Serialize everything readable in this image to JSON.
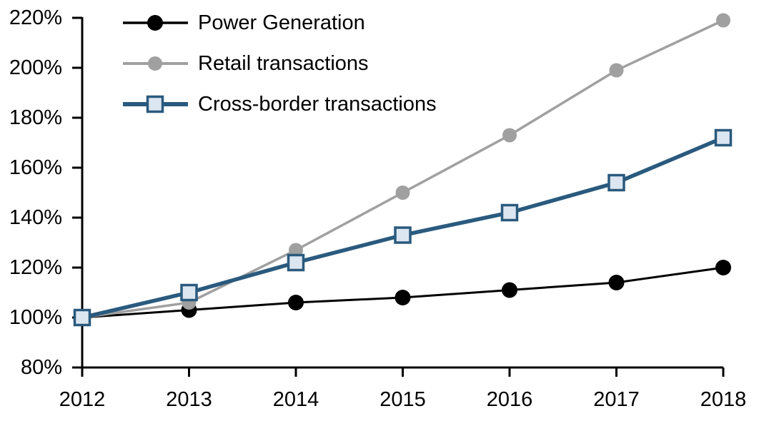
{
  "chart_data": {
    "type": "line",
    "title": "",
    "xlabel": "",
    "ylabel": "",
    "categories": [
      "2012",
      "2013",
      "2014",
      "2015",
      "2016",
      "2017",
      "2018"
    ],
    "ylim": [
      80,
      220
    ],
    "y_ticks": {
      "values": [
        220,
        200,
        180,
        160,
        140,
        120,
        100,
        80
      ],
      "labels": [
        "220%",
        "200%",
        "180%",
        "160%",
        "140%",
        "120%",
        "100%",
        "80%"
      ]
    },
    "grid": false,
    "legend_position": "top-left",
    "axis_color": "#000000",
    "background_color": "#ffffff",
    "series": [
      {
        "name": "Power Generation",
        "values": [
          100,
          103,
          106,
          108,
          111,
          114,
          120
        ],
        "color": "#000000",
        "line_width": 3,
        "marker": "circle",
        "marker_fill": "#000000",
        "marker_size": 11
      },
      {
        "name": "Retail transactions",
        "values": [
          100,
          106,
          127,
          150,
          173,
          199,
          219
        ],
        "color": "#A0A0A0",
        "line_width": 3.5,
        "marker": "circle",
        "marker_fill": "#A0A0A0",
        "marker_size": 10
      },
      {
        "name": "Cross-border transactions",
        "values": [
          100,
          110,
          122,
          133,
          142,
          154,
          172
        ],
        "color": "#2A5A7E",
        "line_width": 5.5,
        "marker": "square",
        "marker_fill": "#DCE6F1",
        "marker_size": 21
      }
    ]
  }
}
